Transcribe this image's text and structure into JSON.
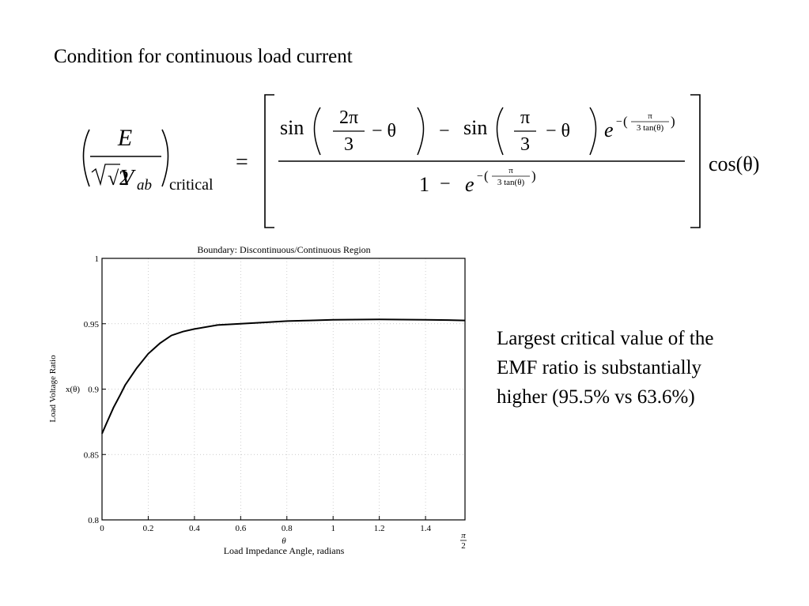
{
  "heading": "Condition for continuous load current",
  "equation": {
    "lhs_E": "E",
    "lhs_root2": "√2",
    "lhs_V": "V",
    "lhs_sub": "ab",
    "lhs_critical": "critical",
    "equals": "=",
    "num_sin1": "sin",
    "num_2pi": "2π",
    "num_3a": "3",
    "num_minus_theta_a": "− θ",
    "num_minus": "−",
    "num_sin2": "sin",
    "num_pi": "π",
    "num_3b": "3",
    "num_minus_theta_b": "− θ",
    "exp_e": "e",
    "exp_minus": "−",
    "exp_pi": "π",
    "exp_den": "3 tan(θ)",
    "den_one": "1",
    "den_minus": "−",
    "den_e": "e",
    "den_exp_minus": "−",
    "den_exp_pi": "π",
    "den_exp_den": "3 tan(θ)",
    "cos": "cos(θ)"
  },
  "caption": {
    "line1": "Largest critical value of the",
    "line2": "EMF ratio is substantially",
    "line3": "higher (95.5% vs 63.6%)"
  },
  "chart_data": {
    "type": "line",
    "title": "Boundary: Discontinuous/Continuous Region",
    "xlabel_symbol": "θ",
    "xlabel": "Load Impedance Angle, radians",
    "ylabel": "Load Voltage Ratio",
    "ylabel_symbol": "x(θ)",
    "xlim": [
      0,
      1.5708
    ],
    "ylim": [
      0.8,
      1.0
    ],
    "x_ticks": [
      0,
      0.2,
      0.4,
      0.6,
      0.8,
      1,
      1.2,
      1.4
    ],
    "x_tick_labels": [
      "0",
      "0.2",
      "0.4",
      "0.6",
      "0.8",
      "1",
      "1.2",
      "1.4"
    ],
    "x_end_label_num": "π",
    "x_end_label_den": "2",
    "y_ticks": [
      0.8,
      0.85,
      0.9,
      0.95,
      1.0
    ],
    "y_tick_labels": [
      "0.8",
      "0.85",
      "0.9",
      "0.95",
      "1"
    ],
    "grid": "dotted",
    "series": [
      {
        "x": [
          0,
          0.02,
          0.05,
          0.08,
          0.1,
          0.15,
          0.2,
          0.25,
          0.3,
          0.35,
          0.4,
          0.5,
          0.6,
          0.7,
          0.8,
          0.9,
          1.0,
          1.1,
          1.2,
          1.3,
          1.4,
          1.5,
          1.5708
        ],
        "y": [
          0.866,
          0.874,
          0.886,
          0.896,
          0.903,
          0.916,
          0.927,
          0.935,
          0.941,
          0.944,
          0.946,
          0.949,
          0.95,
          0.951,
          0.952,
          0.9525,
          0.953,
          0.9532,
          0.9533,
          0.9532,
          0.953,
          0.9528,
          0.9525
        ]
      }
    ]
  }
}
